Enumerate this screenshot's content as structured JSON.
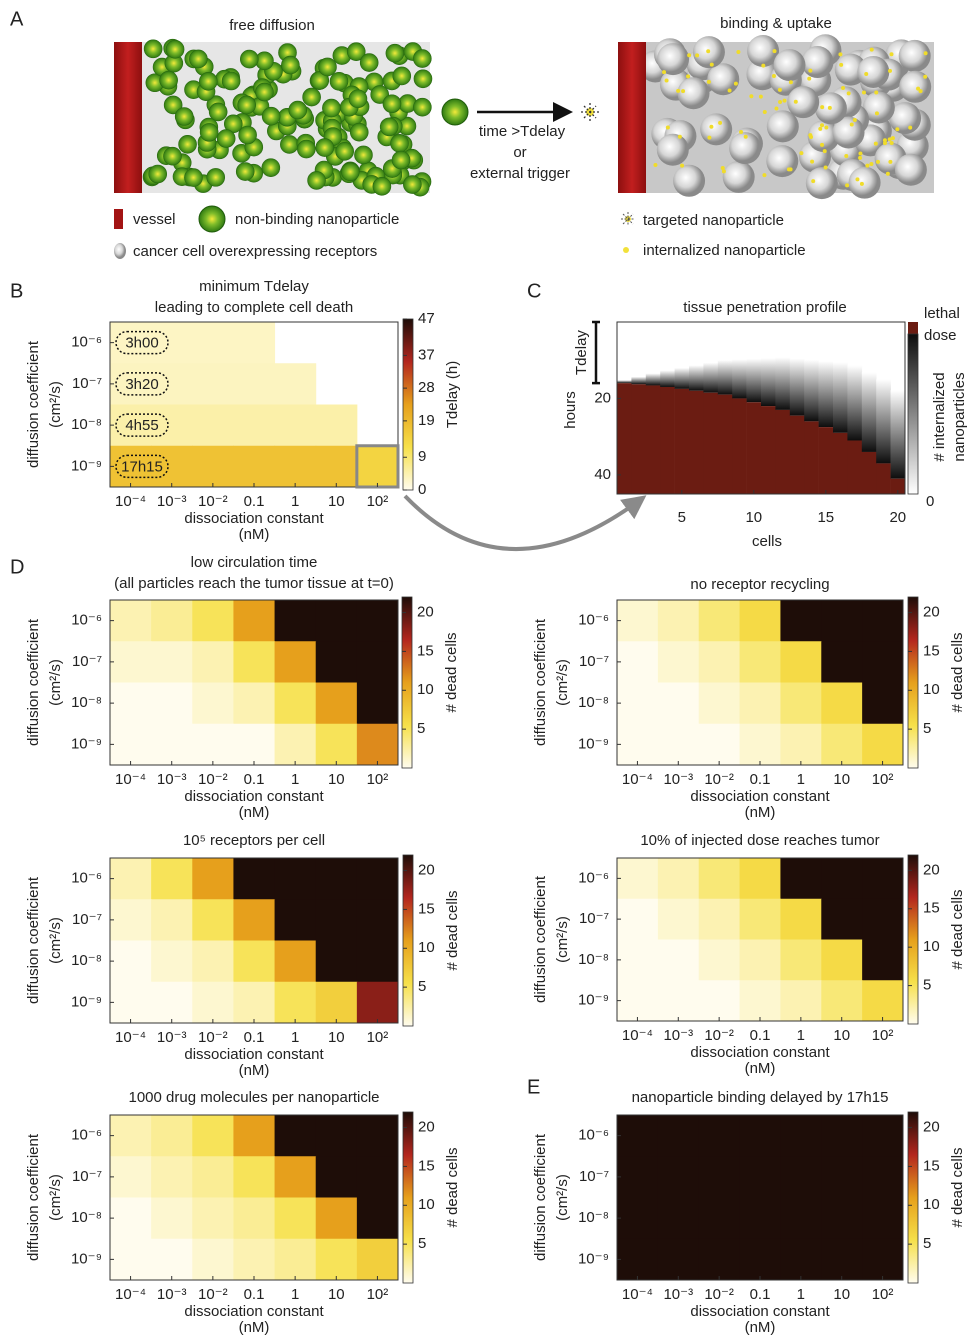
{
  "panel_labels": [
    "A",
    "B",
    "C",
    "D",
    "E"
  ],
  "panel_a": {
    "left_title": "free diffusion",
    "right_title": "binding & uptake",
    "arrow_text": [
      "time >Tdelay",
      "or",
      "external trigger"
    ],
    "legend": [
      "vessel",
      "non-binding nanoparticle",
      "cancer cell overexpressing receptors",
      "targeted nanoparticle",
      "internalized nanoparticle"
    ]
  },
  "chart_data": [
    {
      "type": "heatmap",
      "title": [
        "minimum Tdelay",
        "leading to complete cell death"
      ],
      "categories": [
        "10⁻⁴",
        "10⁻³",
        "10⁻²",
        "0.1",
        "1",
        "10",
        "10²"
      ],
      "y_categories": [
        "10⁻⁶",
        "10⁻⁷",
        "10⁻⁸",
        "10⁻⁹"
      ],
      "values": [
        [
          3,
          3,
          3,
          3,
          null,
          null,
          null
        ],
        [
          3.33,
          3.33,
          3.33,
          3.33,
          3.33,
          null,
          null
        ],
        [
          4.92,
          4.92,
          4.92,
          4.92,
          4.92,
          4.92,
          null
        ],
        [
          17.25,
          17.25,
          17.25,
          17.25,
          17.25,
          17.25,
          14
        ]
      ],
      "annotations": [
        "3h00",
        "3h20",
        "4h55",
        "17h15"
      ],
      "colormap": [
        "#fffcee",
        "#f6e04a",
        "#e6a01c",
        "#b3261e",
        "#1e0d08"
      ],
      "clim": [
        0,
        47
      ],
      "cbar_ticks": [
        0,
        9,
        19,
        28,
        37,
        47
      ],
      "cbar_label": "Tdelay (h)",
      "xlabel": [
        "dissociation constant",
        "(nM)"
      ],
      "ylabel": [
        "diffusion coefficient",
        "(cm²/s)"
      ]
    },
    {
      "type": "profile",
      "title": "tissue penetration profile",
      "x": [
        1,
        2,
        3,
        4,
        5,
        6,
        7,
        8,
        9,
        10,
        11,
        12,
        13,
        14,
        15,
        16,
        17,
        18,
        19,
        20
      ],
      "values": [
        16,
        16.3,
        16.6,
        17,
        17.5,
        18,
        18.5,
        19,
        20,
        21,
        22,
        23,
        24.5,
        26,
        27.5,
        29,
        31,
        34,
        37,
        41
      ],
      "xlim": [
        0.5,
        20.5
      ],
      "xticks": [
        5,
        10,
        15,
        20
      ],
      "ylim": [
        0,
        45
      ],
      "yticks": [
        20,
        40
      ],
      "xlabel": "cells",
      "ylabel": "hours",
      "bracket_label": "Tdelay",
      "lethal_color": "#6b1c12",
      "cbar_top": [
        "lethal",
        "dose"
      ],
      "cbar_label": [
        "# internalized",
        "nanoparticles"
      ],
      "cbar_ticks": [
        0
      ]
    },
    {
      "type": "heatmap",
      "title": [
        "low circulation time",
        "(all particles reach the tumor tissue at t=0)"
      ],
      "categories": [
        "10⁻⁴",
        "10⁻³",
        "10⁻²",
        "0.1",
        "1",
        "10",
        "10²"
      ],
      "y_categories": [
        "10⁻⁶",
        "10⁻⁷",
        "10⁻⁸",
        "10⁻⁹"
      ],
      "values": [
        [
          2,
          3,
          5,
          11,
          22,
          22,
          22
        ],
        [
          1,
          1,
          2,
          5,
          11,
          22,
          22
        ],
        [
          0,
          0,
          1,
          2,
          5,
          11,
          22
        ],
        [
          0,
          0,
          0,
          0,
          2,
          5,
          12
        ]
      ],
      "colormap": [
        "#fffcee",
        "#f6e04a",
        "#e6a01c",
        "#b3261e",
        "#1e0d08"
      ],
      "clim": [
        0,
        22
      ],
      "cbar_ticks": [
        5,
        10,
        15,
        20
      ],
      "cbar_label": "# dead cells",
      "xlabel": [
        "dissociation constant",
        "(nM)"
      ],
      "ylabel": [
        "diffusion coefficient",
        "(cm²/s)"
      ]
    },
    {
      "type": "heatmap",
      "title": [
        "no receptor recycling"
      ],
      "categories": [
        "10⁻⁴",
        "10⁻³",
        "10⁻²",
        "0.1",
        "1",
        "10",
        "10²"
      ],
      "y_categories": [
        "10⁻⁶",
        "10⁻⁷",
        "10⁻⁸",
        "10⁻⁹"
      ],
      "values": [
        [
          1,
          2,
          4,
          6,
          22,
          22,
          22
        ],
        [
          0,
          1,
          2,
          4,
          6,
          22,
          22
        ],
        [
          0,
          0,
          1,
          2,
          4,
          6,
          22
        ],
        [
          0,
          0,
          0,
          1,
          2,
          4,
          6
        ]
      ],
      "colormap": [
        "#fffcee",
        "#f6e04a",
        "#e6a01c",
        "#b3261e",
        "#1e0d08"
      ],
      "clim": [
        0,
        22
      ],
      "cbar_ticks": [
        5,
        10,
        15,
        20
      ],
      "cbar_label": "# dead cells",
      "xlabel": [
        "dissociation constant",
        "(nM)"
      ],
      "ylabel": [
        "diffusion coefficient",
        "(cm²/s)"
      ]
    },
    {
      "type": "heatmap",
      "title": [
        "10⁵ receptors per cell"
      ],
      "categories": [
        "10⁻⁴",
        "10⁻³",
        "10⁻²",
        "0.1",
        "1",
        "10",
        "10²"
      ],
      "y_categories": [
        "10⁻⁶",
        "10⁻⁷",
        "10⁻⁸",
        "10⁻⁹"
      ],
      "values": [
        [
          2,
          5,
          11,
          22,
          22,
          22,
          22
        ],
        [
          1,
          2,
          5,
          11,
          22,
          22,
          22
        ],
        [
          0,
          1,
          2,
          5,
          11,
          22,
          22
        ],
        [
          0,
          0,
          1,
          2,
          5,
          7,
          18
        ]
      ],
      "colormap": [
        "#fffcee",
        "#f6e04a",
        "#e6a01c",
        "#b3261e",
        "#1e0d08"
      ],
      "clim": [
        0,
        22
      ],
      "cbar_ticks": [
        5,
        10,
        15,
        20
      ],
      "cbar_label": "# dead cells",
      "xlabel": [
        "dissociation constant",
        "(nM)"
      ],
      "ylabel": [
        "diffusion coefficient",
        "(cm²/s)"
      ]
    },
    {
      "type": "heatmap",
      "title": [
        "10% of injected dose reaches tumor"
      ],
      "categories": [
        "10⁻⁴",
        "10⁻³",
        "10⁻²",
        "0.1",
        "1",
        "10",
        "10²"
      ],
      "y_categories": [
        "10⁻⁶",
        "10⁻⁷",
        "10⁻⁸",
        "10⁻⁹"
      ],
      "values": [
        [
          1,
          2,
          4,
          6,
          22,
          22,
          22
        ],
        [
          0,
          1,
          2,
          4,
          6,
          22,
          22
        ],
        [
          0,
          0,
          1,
          2,
          4,
          6,
          22
        ],
        [
          0,
          0,
          0,
          1,
          2,
          4,
          6
        ]
      ],
      "colormap": [
        "#fffcee",
        "#f6e04a",
        "#e6a01c",
        "#b3261e",
        "#1e0d08"
      ],
      "clim": [
        0,
        22
      ],
      "cbar_ticks": [
        5,
        10,
        15,
        20
      ],
      "cbar_label": "# dead cells",
      "xlabel": [
        "dissociation constant",
        "(nM)"
      ],
      "ylabel": [
        "diffusion coefficient",
        "(cm²/s)"
      ]
    },
    {
      "type": "heatmap",
      "title": [
        "1000 drug molecules per nanoparticle"
      ],
      "categories": [
        "10⁻⁴",
        "10⁻³",
        "10⁻²",
        "0.1",
        "1",
        "10",
        "10²"
      ],
      "y_categories": [
        "10⁻⁶",
        "10⁻⁷",
        "10⁻⁸",
        "10⁻⁹"
      ],
      "values": [
        [
          2,
          3,
          5,
          11,
          22,
          22,
          22
        ],
        [
          1,
          2,
          3,
          5,
          11,
          22,
          22
        ],
        [
          0,
          1,
          2,
          3,
          5,
          11,
          22
        ],
        [
          0,
          0,
          1,
          2,
          3,
          5,
          7
        ]
      ],
      "colormap": [
        "#fffcee",
        "#f6e04a",
        "#e6a01c",
        "#b3261e",
        "#1e0d08"
      ],
      "clim": [
        0,
        22
      ],
      "cbar_ticks": [
        5,
        10,
        15,
        20
      ],
      "cbar_label": "# dead cells",
      "xlabel": [
        "dissociation constant",
        "(nM)"
      ],
      "ylabel": [
        "diffusion coefficient",
        "(cm²/s)"
      ]
    },
    {
      "type": "heatmap",
      "title": [
        "nanoparticle binding delayed by 17h15"
      ],
      "categories": [
        "10⁻⁴",
        "10⁻³",
        "10⁻²",
        "0.1",
        "1",
        "10",
        "10²"
      ],
      "y_categories": [
        "10⁻⁶",
        "10⁻⁷",
        "10⁻⁸",
        "10⁻⁹"
      ],
      "values": [
        [
          22,
          22,
          22,
          22,
          22,
          22,
          22
        ],
        [
          22,
          22,
          22,
          22,
          22,
          22,
          22
        ],
        [
          22,
          22,
          22,
          22,
          22,
          22,
          22
        ],
        [
          22,
          22,
          22,
          22,
          22,
          22,
          22
        ]
      ],
      "colormap": [
        "#fffcee",
        "#f6e04a",
        "#e6a01c",
        "#b3261e",
        "#1e0d08"
      ],
      "clim": [
        0,
        22
      ],
      "cbar_ticks": [
        5,
        10,
        15,
        20
      ],
      "cbar_label": "# dead cells",
      "xlabel": [
        "dissociation constant",
        "(nM)"
      ],
      "ylabel": [
        "diffusion coefficient",
        "(cm²/s)"
      ]
    }
  ]
}
